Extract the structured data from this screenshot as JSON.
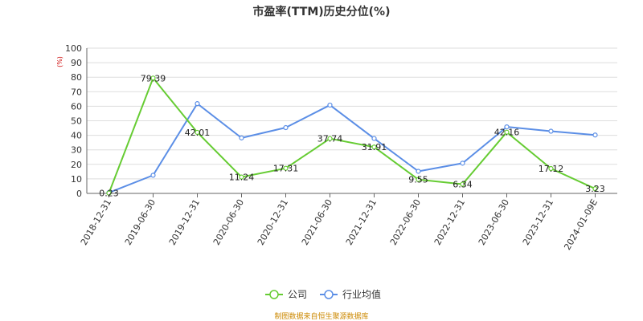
{
  "colors": {
    "company": "#66cc33",
    "industry": "#5b8ee6",
    "unit": "#cc0000",
    "source": "#cc8800",
    "grid": "#dddddd",
    "axis": "#666666"
  },
  "chart_data": {
    "type": "line",
    "title": "市盈率(TTM)历史分位(%)",
    "unit_label": "(%)",
    "ylim": [
      0,
      100
    ],
    "yticks": [
      0,
      10,
      20,
      30,
      40,
      50,
      60,
      70,
      80,
      90,
      100
    ],
    "grid": true,
    "legend_position": "bottom-center",
    "categories": [
      "2018-12-31",
      "2019-06-30",
      "2019-12-31",
      "2020-06-30",
      "2020-12-31",
      "2021-06-30",
      "2021-12-31",
      "2022-06-30",
      "2022-12-31",
      "2023-06-30",
      "2023-12-31",
      "2024-01-09E"
    ],
    "series": [
      {
        "name": "公司",
        "values": [
          0.23,
          79.39,
          42.01,
          11.24,
          17.31,
          37.74,
          31.91,
          9.55,
          6.34,
          42.16,
          17.12,
          3.23
        ],
        "labels": [
          "0.23",
          "79.39",
          "42.01",
          "11.24",
          "17.31",
          "37.74",
          "31.91",
          "9.55",
          "6.34",
          "42.16",
          "17.12",
          "3.23"
        ]
      },
      {
        "name": "行业均值",
        "values": [
          0.5,
          12.5,
          61.8,
          38.2,
          45.3,
          60.8,
          37.8,
          15.2,
          20.8,
          45.8,
          42.8,
          40.2
        ]
      }
    ]
  },
  "source": "制图数据来自恒生聚源数据库"
}
